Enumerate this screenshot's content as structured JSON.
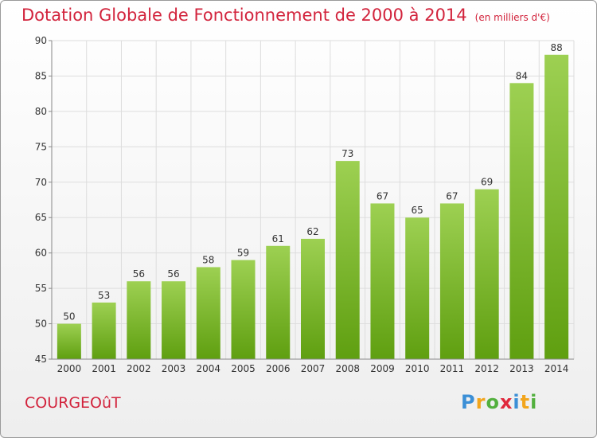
{
  "header": {
    "title": "Dotation Globale de Fonctionnement de 2000 à 2014",
    "subtitle": "(en milliers d'€)"
  },
  "footer": {
    "commune": "COURGEOûT",
    "logo": [
      "P",
      "r",
      "o",
      "x",
      "i",
      "t",
      "i"
    ]
  },
  "colors": {
    "bar_top": "#9dd052",
    "bar_bottom": "#5f9f10",
    "title": "#d2233c",
    "logo": [
      "#3b8fd6",
      "#f2a51c",
      "#53b03e",
      "#e0283c",
      "#3b8fd6",
      "#f2a51c",
      "#53b03e"
    ]
  },
  "chart_data": {
    "type": "bar",
    "title": "Dotation Globale de Fonctionnement de 2000 à 2014",
    "subtitle": "(en milliers d'€)",
    "categories": [
      "2000",
      "2001",
      "2002",
      "2003",
      "2004",
      "2005",
      "2006",
      "2007",
      "2008",
      "2009",
      "2010",
      "2011",
      "2012",
      "2013",
      "2014"
    ],
    "values": [
      50,
      53,
      56,
      56,
      58,
      59,
      61,
      62,
      73,
      67,
      65,
      67,
      69,
      84,
      88
    ],
    "yticks": [
      45,
      50,
      55,
      60,
      65,
      70,
      75,
      80,
      85,
      90
    ],
    "ylim": [
      45,
      90
    ],
    "grid": true,
    "xlabel": "",
    "ylabel": ""
  }
}
